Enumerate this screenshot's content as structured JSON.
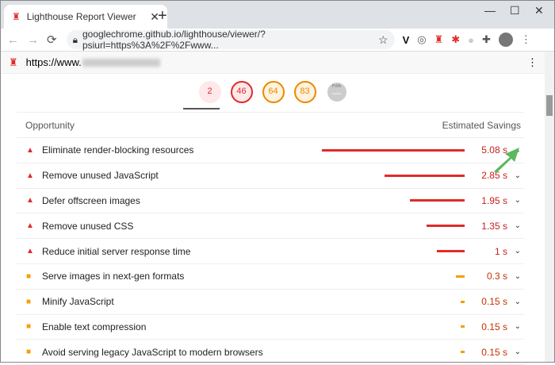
{
  "browser": {
    "tab_title": "Lighthouse Report Viewer",
    "url": "googlechrome.github.io/lighthouse/viewer/?psiurl=https%3A%2F%2Fwww...",
    "new_tab": "+",
    "close": "✕",
    "minimize": "—",
    "maximize": "☐",
    "win_close": "✕"
  },
  "page": {
    "url_prefix": "https://www."
  },
  "gauges": [
    {
      "score": "2",
      "color": "#e22a2a",
      "bg": "#fde9e9"
    },
    {
      "score": "46",
      "color": "#e22a2a",
      "bg": "#fde9e9"
    },
    {
      "score": "64",
      "color": "#ea8a00",
      "bg": "#fff3e0"
    },
    {
      "score": "83",
      "color": "#ea8a00",
      "bg": "#fff3e0"
    },
    {
      "score": "—",
      "color": "#fff",
      "bg": "#ccc",
      "label": "PWA"
    }
  ],
  "table": {
    "col_opportunity": "Opportunity",
    "col_savings": "Estimated Savings",
    "rows": [
      {
        "title": "Eliminate render-blocking resources",
        "savings": "5.08 s",
        "seconds": 5.08,
        "severity": "fail"
      },
      {
        "title": "Remove unused JavaScript",
        "savings": "2.85 s",
        "seconds": 2.85,
        "severity": "fail"
      },
      {
        "title": "Defer offscreen images",
        "savings": "1.95 s",
        "seconds": 1.95,
        "severity": "fail"
      },
      {
        "title": "Remove unused CSS",
        "savings": "1.35 s",
        "seconds": 1.35,
        "severity": "fail"
      },
      {
        "title": "Reduce initial server response time",
        "savings": "1 s",
        "seconds": 1,
        "severity": "fail"
      },
      {
        "title": "Serve images in next-gen formats",
        "savings": "0.3 s",
        "seconds": 0.3,
        "severity": "average"
      },
      {
        "title": "Minify JavaScript",
        "savings": "0.15 s",
        "seconds": 0.15,
        "severity": "average"
      },
      {
        "title": "Enable text compression",
        "savings": "0.15 s",
        "seconds": 0.15,
        "severity": "average"
      },
      {
        "title": "Avoid serving legacy JavaScript to modern browsers",
        "savings": "0.15 s",
        "seconds": 0.15,
        "severity": "average"
      }
    ]
  },
  "colors": {
    "fail": "#e22a2a",
    "average": "#f59e0b",
    "fail_text": "#c5221f",
    "average_text": "#c33300",
    "annotation_arrow": "#5cb85c"
  }
}
